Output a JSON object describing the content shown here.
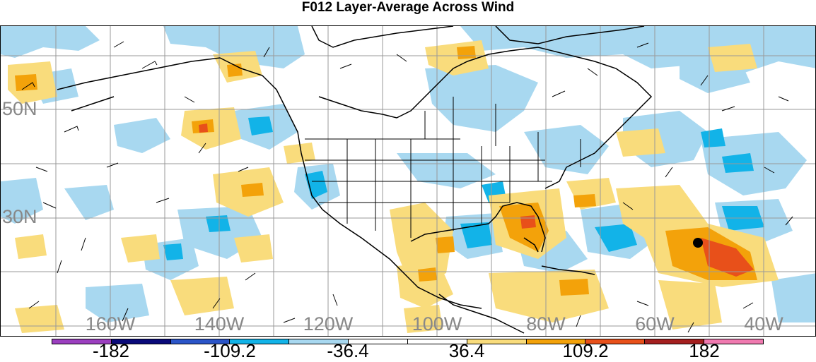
{
  "title": "F012 Layer-Average Across Wind",
  "lat_labels": [
    "50N",
    "30N"
  ],
  "lon_labels": [
    "160W",
    "140W",
    "120W",
    "100W",
    "80W",
    "60W",
    "40W"
  ],
  "colorbar": {
    "colors": [
      "#9b3fbf",
      "#0a0a7a",
      "#2b55c8",
      "#12b3e8",
      "#a8d8f0",
      "#ffffff",
      "#ffffff",
      "#f9dc7c",
      "#f3a20a",
      "#e8501a",
      "#a41f1f",
      "#f07ab0"
    ],
    "labels": [
      "-182",
      "-109.2",
      "-36.4",
      "36.4",
      "109.2",
      "182"
    ]
  },
  "colors": {
    "light_blue": "#a8d8f0",
    "mid_blue": "#12b3e8",
    "dark_blue": "#2b55c8",
    "light_yellow": "#f9dc7c",
    "orange": "#f3a20a",
    "red_orange": "#e8501a",
    "grid": "#999999",
    "coast": "#000000"
  },
  "marker": "black-dot"
}
